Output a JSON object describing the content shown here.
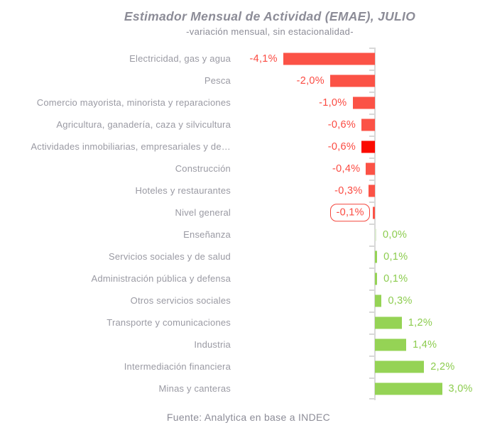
{
  "header": {
    "title": "Estimador Mensual de Actividad (EMAE), JULIO",
    "subtitle": "-variación mensual, sin estacionalidad-"
  },
  "footer": {
    "source": "Fuente: Analytica en base a INDEC"
  },
  "chart_data": {
    "type": "bar",
    "orientation": "horizontal",
    "title": "Estimador Mensual de Actividad (EMAE), JULIO",
    "subtitle": "-variación mensual, sin estacionalidad-",
    "xlabel": "",
    "ylabel": "",
    "unit": "% variación mensual",
    "xlim": [
      -4.5,
      3.5
    ],
    "grid": false,
    "legend": "none",
    "categories": [
      "Electricidad, gas y agua",
      "Pesca",
      "Comercio mayorista, minorista y reparaciones",
      "Agricultura, ganadería, caza y silvicultura",
      "Actividades inmobiliarias, empresariales y de…",
      "Construcción",
      "Hoteles y restaurantes",
      "Nivel general",
      "Enseñanza",
      "Servicios sociales y de salud",
      "Administración pública y defensa",
      "Otros servicios sociales",
      "Transporte y comunicaciones",
      "Industria",
      "Intermediación financiera",
      "Minas y canteras"
    ],
    "values": [
      -4.1,
      -2.0,
      -1.0,
      -0.6,
      -0.6,
      -0.4,
      -0.3,
      -0.1,
      0.0,
      0.1,
      0.1,
      0.3,
      1.2,
      1.4,
      2.2,
      3.0
    ],
    "value_labels": [
      "-4,1%",
      "-2,0%",
      "-1,0%",
      "-0,6%",
      "-0,6%",
      "-0,4%",
      "-0,3%",
      "-0,1%",
      "0,0%",
      "0,1%",
      "0,1%",
      "0,3%",
      "1,2%",
      "1,4%",
      "2,2%",
      "3,0%"
    ],
    "highlight_index": 4,
    "boxed_value_index": 7,
    "colors": {
      "negative_bar": "#fb5246",
      "negative_bar_highlight": "#fb0b00",
      "positive_bar": "#95d355",
      "zero_bar": "#dcebd0",
      "negative_text": "#fb4a41",
      "positive_text": "#8ccc4e",
      "category_text": "#9a9aa3",
      "title_text": "#8c8c97",
      "axis": "#d8d8d8"
    }
  }
}
